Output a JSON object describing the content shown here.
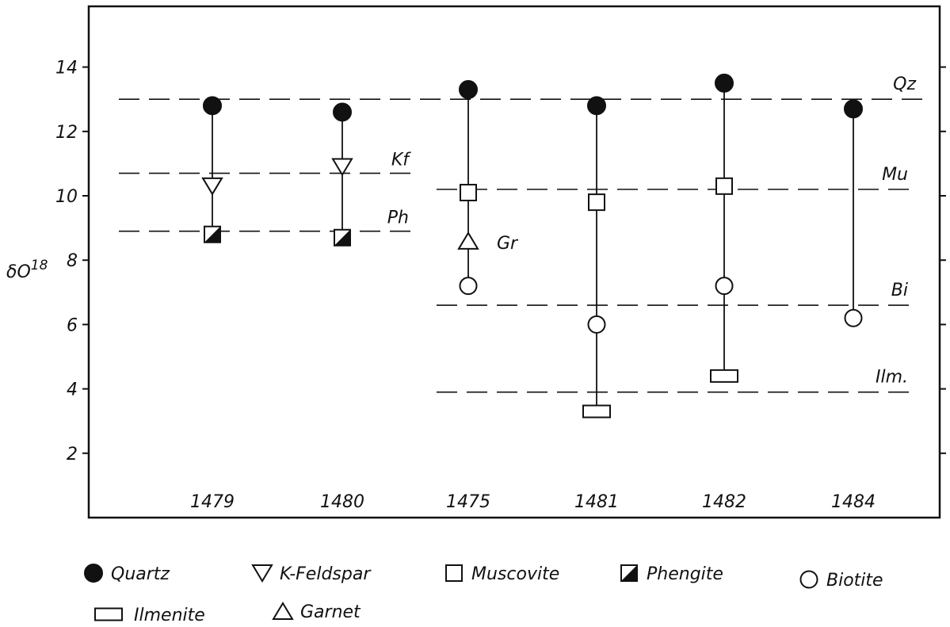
{
  "chart_data": {
    "type": "scatter",
    "ylabel": "δO18",
    "ylim": [
      0,
      16.5
    ],
    "y_ticks": [
      2,
      4,
      6,
      8,
      10,
      12,
      14
    ],
    "categories": [
      "1479",
      "1480",
      "1475",
      "1481",
      "1482",
      "1484"
    ],
    "samples": [
      {
        "label": "1479",
        "points": [
          {
            "mineral": "Quartz",
            "value": 12.8
          },
          {
            "mineral": "K-Feldspar",
            "value": 10.3
          },
          {
            "mineral": "Phengite",
            "value": 8.8
          }
        ]
      },
      {
        "label": "1480",
        "points": [
          {
            "mineral": "Quartz",
            "value": 12.6
          },
          {
            "mineral": "K-Feldspar",
            "value": 10.9
          },
          {
            "mineral": "Phengite",
            "value": 8.7
          }
        ]
      },
      {
        "label": "1475",
        "points": [
          {
            "mineral": "Quartz",
            "value": 13.3
          },
          {
            "mineral": "Muscovite",
            "value": 10.1
          },
          {
            "mineral": "Garnet",
            "value": 8.6
          },
          {
            "mineral": "Biotite",
            "value": 7.2
          }
        ]
      },
      {
        "label": "1481",
        "points": [
          {
            "mineral": "Quartz",
            "value": 12.8
          },
          {
            "mineral": "Muscovite",
            "value": 9.8
          },
          {
            "mineral": "Biotite",
            "value": 6.0
          },
          {
            "mineral": "Ilmenite",
            "value": 3.3
          }
        ]
      },
      {
        "label": "1482",
        "points": [
          {
            "mineral": "Quartz",
            "value": 13.5
          },
          {
            "mineral": "Muscovite",
            "value": 10.3
          },
          {
            "mineral": "Biotite",
            "value": 7.2
          },
          {
            "mineral": "Ilmenite",
            "value": 4.4
          }
        ]
      },
      {
        "label": "1484",
        "points": [
          {
            "mineral": "Quartz",
            "value": 12.7
          },
          {
            "mineral": "Biotite",
            "value": 6.2
          }
        ]
      }
    ],
    "reference_lines": [
      {
        "label": "Qz",
        "value": 13.0,
        "from_sample": 0,
        "to_sample": 5
      },
      {
        "label": "Kf",
        "value": 10.7,
        "from_sample": 0,
        "to_sample": 1
      },
      {
        "label": "Ph",
        "value": 8.9,
        "from_sample": 0,
        "to_sample": 1
      },
      {
        "label": "Mu",
        "value": 10.2,
        "from_sample": 2,
        "to_sample": 5
      },
      {
        "label": "Gr",
        "value": 8.6,
        "from_sample": 2,
        "to_sample": 2
      },
      {
        "label": "Bi",
        "value": 6.6,
        "from_sample": 2,
        "to_sample": 5
      },
      {
        "label": "Ilm.",
        "value": 3.9,
        "from_sample": 2,
        "to_sample": 5
      }
    ],
    "legend": [
      {
        "mineral": "Quartz",
        "label": "Quartz"
      },
      {
        "mineral": "K-Feldspar",
        "label": "K-Feldspar"
      },
      {
        "mineral": "Muscovite",
        "label": "Muscovite"
      },
      {
        "mineral": "Phengite",
        "label": "Phengite"
      },
      {
        "mineral": "Biotite",
        "label": "Biotite"
      },
      {
        "mineral": "Ilmenite",
        "label": "Ilmenite"
      },
      {
        "mineral": "Garnet",
        "label": "Garnet"
      }
    ],
    "grid": false,
    "legend_placement": "bottom"
  }
}
